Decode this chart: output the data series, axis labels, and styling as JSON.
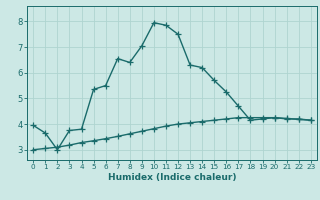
{
  "xlabel": "Humidex (Indice chaleur)",
  "ylabel": "",
  "bg_color": "#cce8e5",
  "grid_color": "#afd4d0",
  "line_color": "#1a6b6b",
  "xlim": [
    -0.5,
    23.5
  ],
  "ylim": [
    2.6,
    8.6
  ],
  "yticks": [
    3,
    4,
    5,
    6,
    7,
    8
  ],
  "xticks": [
    0,
    1,
    2,
    3,
    4,
    5,
    6,
    7,
    8,
    9,
    10,
    11,
    12,
    13,
    14,
    15,
    16,
    17,
    18,
    19,
    20,
    21,
    22,
    23
  ],
  "curve1_x": [
    0,
    1,
    2,
    3,
    4,
    5,
    6,
    7,
    8,
    9,
    10,
    11,
    12,
    13,
    14,
    15,
    16,
    17,
    18,
    19,
    20,
    21,
    22,
    23
  ],
  "curve1_y": [
    3.95,
    3.65,
    3.0,
    3.75,
    3.8,
    5.35,
    5.5,
    6.55,
    6.4,
    7.05,
    7.95,
    7.85,
    7.5,
    6.3,
    6.2,
    5.7,
    5.25,
    4.7,
    4.15,
    4.2,
    4.25,
    4.2,
    4.2,
    4.15
  ],
  "curve2_x": [
    0,
    1,
    2,
    3,
    4,
    5,
    6,
    7,
    8,
    9,
    10,
    11,
    12,
    13,
    14,
    15,
    16,
    17,
    18,
    19,
    20,
    21,
    22,
    23
  ],
  "curve2_y": [
    3.0,
    3.05,
    3.1,
    3.18,
    3.28,
    3.35,
    3.43,
    3.52,
    3.62,
    3.72,
    3.82,
    3.92,
    4.0,
    4.05,
    4.1,
    4.15,
    4.2,
    4.25,
    4.25,
    4.25,
    4.25,
    4.22,
    4.18,
    4.15
  ],
  "marker": "+",
  "markersize": 4,
  "linewidth": 1.0
}
